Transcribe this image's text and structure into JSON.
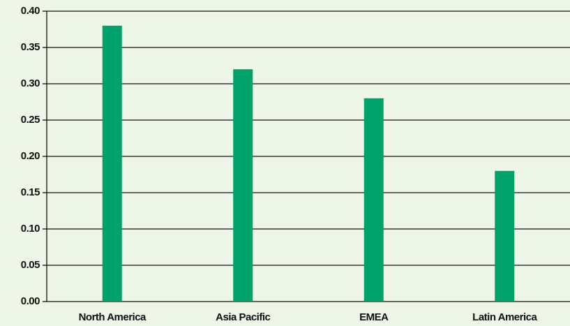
{
  "chart_data": {
    "type": "bar",
    "categories": [
      "North America",
      "Asia Pacific",
      "EMEA",
      "Latin America"
    ],
    "values": [
      0.38,
      0.32,
      0.28,
      0.18
    ],
    "color": "#00a26c",
    "ylim": [
      0,
      0.4
    ],
    "yticks": [
      {
        "value": 0,
        "label": "0.00"
      },
      {
        "value": 0.05,
        "label": "0.05"
      },
      {
        "value": 0.1,
        "label": "0.10"
      },
      {
        "value": 0.15,
        "label": "0.15"
      },
      {
        "value": 0.2,
        "label": "0.20"
      },
      {
        "value": 0.25,
        "label": "0.25"
      },
      {
        "value": 0.3,
        "label": "0.30"
      },
      {
        "value": 0.35,
        "label": "0.35"
      },
      {
        "value": 0.4,
        "label": "0.40"
      }
    ],
    "grid": true
  }
}
